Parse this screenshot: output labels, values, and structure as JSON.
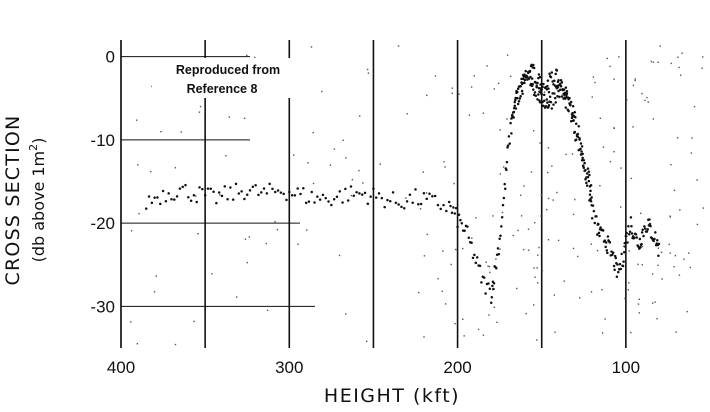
{
  "chart_data": {
    "type": "scatter",
    "title": "",
    "xlabel": "HEIGHT (kft)",
    "ylabel_line1": "CROSS SECTION",
    "ylabel_line2_prefix": "(db above 1m",
    "ylabel_line2_sup": "2",
    "ylabel_line2_suffix": ")",
    "annotation_line1": "Reproduced from",
    "annotation_line2": "Reference 8",
    "xlim": [
      400,
      50
    ],
    "ylim": [
      -35,
      2
    ],
    "x_ticks": [
      400,
      300,
      200,
      100
    ],
    "x_tick_labels": [
      "400",
      "300",
      "200",
      "100"
    ],
    "y_ticks": [
      0,
      -10,
      -20,
      -30
    ],
    "y_tick_labels": [
      "0",
      "-10",
      "-20",
      "-30"
    ],
    "vertical_gridlines": [
      400,
      350,
      300,
      250,
      200,
      150,
      100
    ],
    "grid": true,
    "series": [
      {
        "x": [
          385,
          375,
          365,
          355,
          345,
          335,
          325,
          315,
          305,
          295,
          285,
          275,
          265,
          255,
          245,
          235,
          225,
          215,
          205,
          200,
          195,
          190,
          185,
          180,
          178,
          175,
          172,
          170,
          167,
          165,
          162,
          160,
          157,
          155,
          152,
          150,
          147,
          145,
          142,
          140,
          137,
          135,
          132,
          130,
          127,
          125,
          122,
          120,
          117,
          115,
          112,
          110,
          107,
          105,
          102,
          100,
          97,
          95,
          92,
          90,
          87,
          85,
          82,
          80
        ],
        "y": [
          -17.5,
          -16.5,
          -16,
          -16.5,
          -17,
          -16.5,
          -16,
          -16.5,
          -16,
          -16.5,
          -17,
          -17,
          -16.5,
          -16.5,
          -17,
          -17.5,
          -17,
          -17.5,
          -18,
          -19.5,
          -21,
          -24,
          -27,
          -28.5,
          -26,
          -22,
          -16,
          -11,
          -7,
          -5,
          -3.5,
          -2.5,
          -2,
          -2,
          -3,
          -3.5,
          -3.5,
          -3,
          -2.5,
          -3,
          -4,
          -5,
          -7,
          -9,
          -11,
          -13,
          -16,
          -18.5,
          -20.5,
          -21.5,
          -22,
          -23,
          -24.5,
          -26,
          -24.5,
          -22,
          -20,
          -21.5,
          -22.5,
          -21,
          -20,
          -21,
          -22,
          -23.5
        ]
      },
      {
        "x": [
          168,
          165,
          162,
          160,
          157,
          155,
          152,
          150,
          147,
          145,
          142,
          140,
          137,
          135,
          132,
          130,
          127,
          125,
          122,
          120
        ],
        "y": [
          -7,
          -5,
          -4,
          -3,
          -2.5,
          -3.5,
          -4.5,
          -5,
          -5.5,
          -5.5,
          -4.5,
          -4,
          -4.5,
          -5.5,
          -6.5,
          -8,
          -10,
          -12.5,
          -14.5,
          -17
        ]
      }
    ],
    "color": "#111111"
  }
}
